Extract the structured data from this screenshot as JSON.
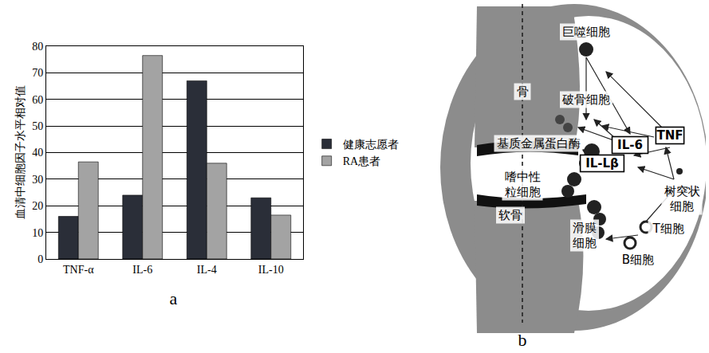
{
  "chart_data": {
    "type": "bar",
    "y_label": "血清中细胞因子水平相对值",
    "categories": [
      "TNF-α",
      "IL-6",
      "IL-4",
      "IL-10"
    ],
    "series": [
      {
        "name": "健康志愿者",
        "color": "#2a2e38",
        "values": [
          16,
          24,
          67,
          23
        ]
      },
      {
        "name": "RA患者",
        "color": "#a3a3a3",
        "values": [
          36.5,
          76.5,
          36,
          16.5
        ]
      }
    ],
    "ylim": [
      0,
      80
    ],
    "yticks": [
      0,
      10,
      20,
      30,
      40,
      50,
      60,
      70,
      80
    ],
    "grid": true,
    "legend": "right"
  },
  "chart_label": "a",
  "diagram": {
    "label": "b",
    "nodes": [
      {
        "lines": [
          "巨噬细胞"
        ]
      },
      {
        "lines": [
          "骨"
        ]
      },
      {
        "lines": [
          "破骨细胞"
        ]
      },
      {
        "lines": [
          "基质金属蛋白酶"
        ]
      },
      {
        "lines": [
          "IL-6"
        ],
        "boxed": true
      },
      {
        "lines": [
          "TNF"
        ],
        "boxed": true
      },
      {
        "lines": [
          "IL-Lβ"
        ],
        "boxed": true
      },
      {
        "lines": [
          "嗜中性",
          "粒细胞"
        ]
      },
      {
        "lines": [
          "树突状",
          "细胞"
        ]
      },
      {
        "lines": [
          "软骨"
        ]
      },
      {
        "lines": [
          "滑膜",
          "细胞"
        ]
      },
      {
        "lines": [
          "T细胞"
        ]
      },
      {
        "lines": [
          "B细胞"
        ]
      }
    ]
  }
}
